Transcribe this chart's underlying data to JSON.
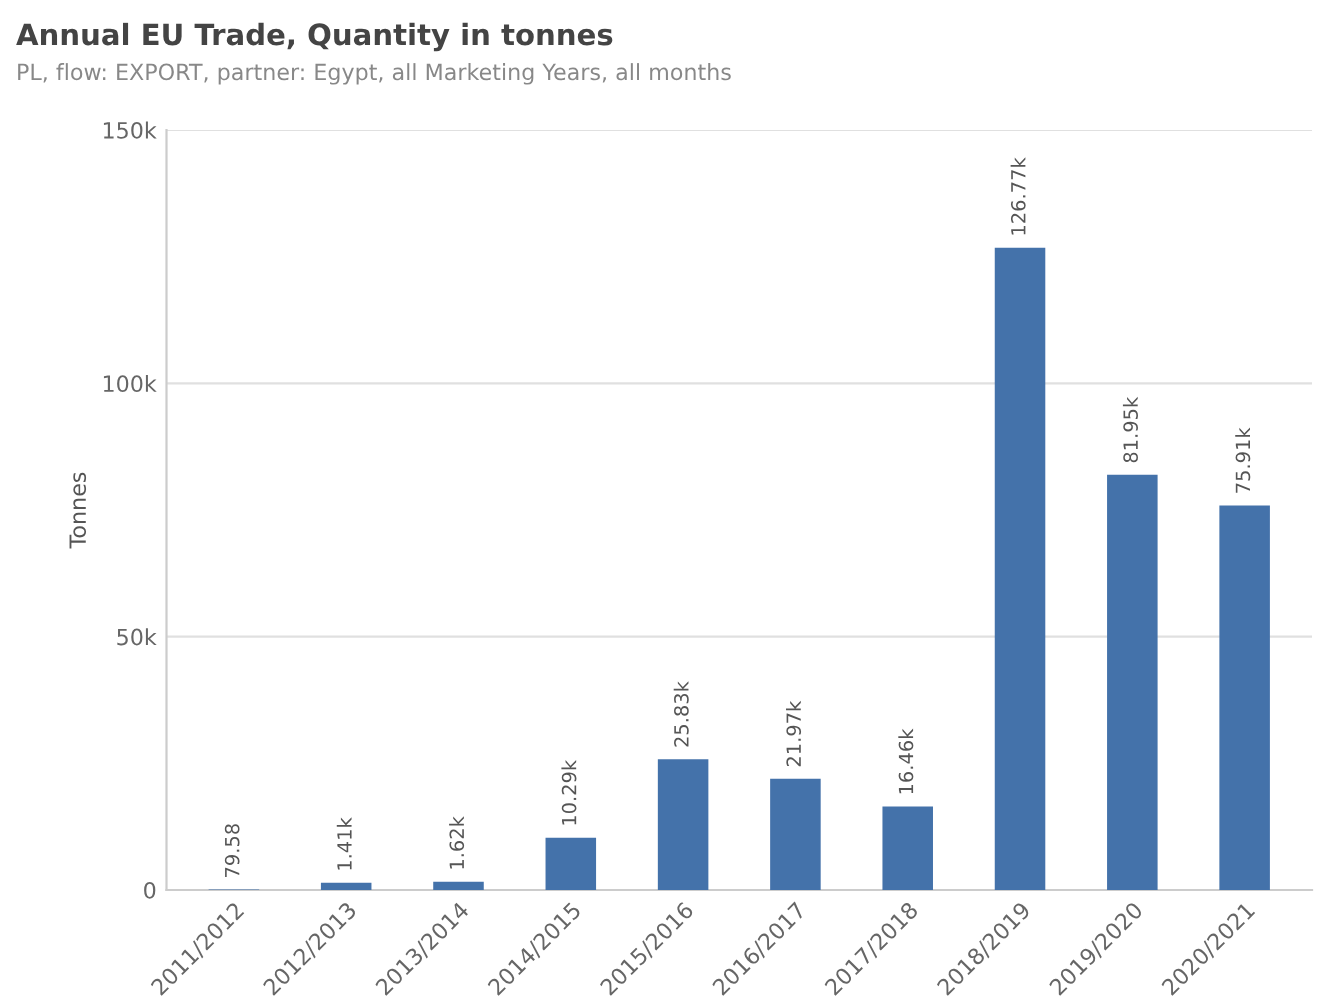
{
  "chart_data": {
    "type": "bar",
    "title": "Annual EU Trade, Quantity in tonnes",
    "subtitle": "PL, flow: EXPORT, partner: Egypt, all Marketing Years, all months",
    "ylabel": "Tonnes",
    "categories": [
      "2011/2012",
      "2012/2013",
      "2013/2014",
      "2014/2015",
      "2015/2016",
      "2016/2017",
      "2017/2018",
      "2018/2019",
      "2019/2020",
      "2020/2021"
    ],
    "values": [
      79.58,
      1410,
      1620,
      10290,
      25830,
      21970,
      16460,
      126770,
      81950,
      75910
    ],
    "value_labels": [
      "79.58",
      "1.41k",
      "1.62k",
      "10.29k",
      "25.83k",
      "21.97k",
      "16.46k",
      "126.77k",
      "81.95k",
      "75.91k"
    ],
    "color": "#4472aa",
    "ylim": [
      0,
      150000
    ],
    "yticks": [
      {
        "value": 0,
        "label": "0"
      },
      {
        "value": 50000,
        "label": "50k"
      },
      {
        "value": 100000,
        "label": "100k"
      },
      {
        "value": 150000,
        "label": "150k"
      }
    ],
    "grid": "y"
  }
}
